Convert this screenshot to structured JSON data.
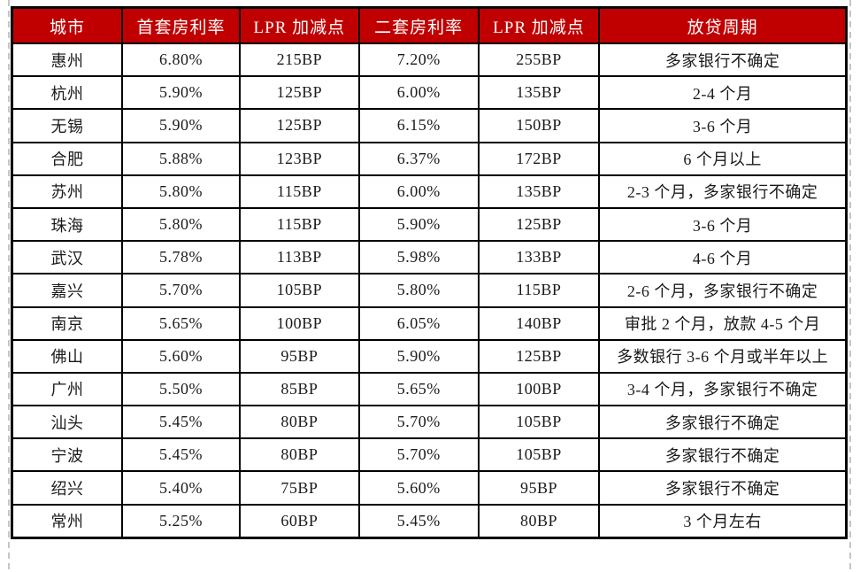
{
  "colors": {
    "header_bg": "#C00000",
    "header_text": "#FFFFFF",
    "body_text": "#1A1A1A",
    "border": "#000000",
    "guide_dash": "#C6C6C6",
    "page_bg": "#FFFFFF"
  },
  "chart_data": {
    "type": "table",
    "columns": [
      "城市",
      "首套房利率",
      "LPR 加减点",
      "二套房利率",
      "LPR 加减点",
      "放贷周期"
    ],
    "rows": [
      [
        "惠州",
        "6.80%",
        "215BP",
        "7.20%",
        "255BP",
        "多家银行不确定"
      ],
      [
        "杭州",
        "5.90%",
        "125BP",
        "6.00%",
        "135BP",
        "2-4 个月"
      ],
      [
        "无锡",
        "5.90%",
        "125BP",
        "6.15%",
        "150BP",
        "3-6 个月"
      ],
      [
        "合肥",
        "5.88%",
        "123BP",
        "6.37%",
        "172BP",
        "6 个月以上"
      ],
      [
        "苏州",
        "5.80%",
        "115BP",
        "6.00%",
        "135BP",
        "2-3 个月，多家银行不确定"
      ],
      [
        "珠海",
        "5.80%",
        "115BP",
        "5.90%",
        "125BP",
        "3-6 个月"
      ],
      [
        "武汉",
        "5.78%",
        "113BP",
        "5.98%",
        "133BP",
        "4-6 个月"
      ],
      [
        "嘉兴",
        "5.70%",
        "105BP",
        "5.80%",
        "115BP",
        "2-6 个月，多家银行不确定"
      ],
      [
        "南京",
        "5.65%",
        "100BP",
        "6.05%",
        "140BP",
        "审批 2 个月，放款 4-5 个月"
      ],
      [
        "佛山",
        "5.60%",
        "95BP",
        "5.90%",
        "125BP",
        "多数银行 3-6 个月或半年以上"
      ],
      [
        "广州",
        "5.50%",
        "85BP",
        "5.65%",
        "100BP",
        "3-4 个月，多家银行不确定"
      ],
      [
        "汕头",
        "5.45%",
        "80BP",
        "5.70%",
        "105BP",
        "多家银行不确定"
      ],
      [
        "宁波",
        "5.45%",
        "80BP",
        "5.70%",
        "105BP",
        "多家银行不确定"
      ],
      [
        "绍兴",
        "5.40%",
        "75BP",
        "5.60%",
        "95BP",
        "多家银行不确定"
      ],
      [
        "常州",
        "5.25%",
        "60BP",
        "5.45%",
        "80BP",
        "3 个月左右"
      ]
    ]
  }
}
